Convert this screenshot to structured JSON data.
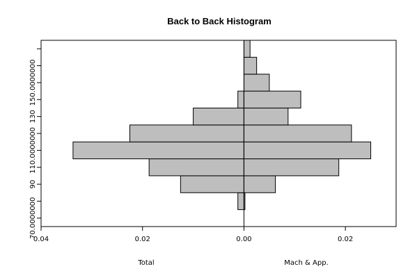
{
  "chart_data": {
    "type": "bar",
    "title": "Back to Back Histogram",
    "orientation": "horizontal",
    "left_series_label": "Total",
    "right_series_label": "Mach & App.",
    "x_ticks": [
      {
        "value": -0.04,
        "label": "0.04"
      },
      {
        "value": -0.02,
        "label": "0.02"
      },
      {
        "value": 0.0,
        "label": "0.00"
      },
      {
        "value": 0.02,
        "label": "0.02"
      }
    ],
    "xlim": [
      -0.04,
      0.03
    ],
    "ylim": [
      65,
      175
    ],
    "y_ticks": [
      {
        "value": 70,
        "label": "70.0000000"
      },
      {
        "value": 80,
        "label": ""
      },
      {
        "value": 90,
        "label": "90"
      },
      {
        "value": 100,
        "label": ""
      },
      {
        "value": 110,
        "label": "110.0000000"
      },
      {
        "value": 120,
        "label": ""
      },
      {
        "value": 130,
        "label": "130"
      },
      {
        "value": 140,
        "label": ""
      },
      {
        "value": 150,
        "label": "150.0000000"
      },
      {
        "value": 160,
        "label": ""
      },
      {
        "value": 170,
        "label": ""
      }
    ],
    "bins": [
      {
        "from": 75,
        "to": 85,
        "left": 0.0012,
        "right": 0.0002
      },
      {
        "from": 85,
        "to": 95,
        "left": 0.0125,
        "right": 0.0062
      },
      {
        "from": 95,
        "to": 105,
        "left": 0.0187,
        "right": 0.0187
      },
      {
        "from": 105,
        "to": 115,
        "left": 0.0337,
        "right": 0.025
      },
      {
        "from": 115,
        "to": 125,
        "left": 0.0225,
        "right": 0.0212
      },
      {
        "from": 125,
        "to": 135,
        "left": 0.01,
        "right": 0.0087
      },
      {
        "from": 135,
        "to": 145,
        "left": 0.0012,
        "right": 0.0112
      },
      {
        "from": 145,
        "to": 155,
        "left": 0.0,
        "right": 0.005
      },
      {
        "from": 155,
        "to": 165,
        "left": 0.0,
        "right": 0.0025
      },
      {
        "from": 165,
        "to": 175,
        "left": 0.0,
        "right": 0.0012
      }
    ],
    "bar_fill": "#bebebe",
    "bar_stroke": "#000000"
  }
}
